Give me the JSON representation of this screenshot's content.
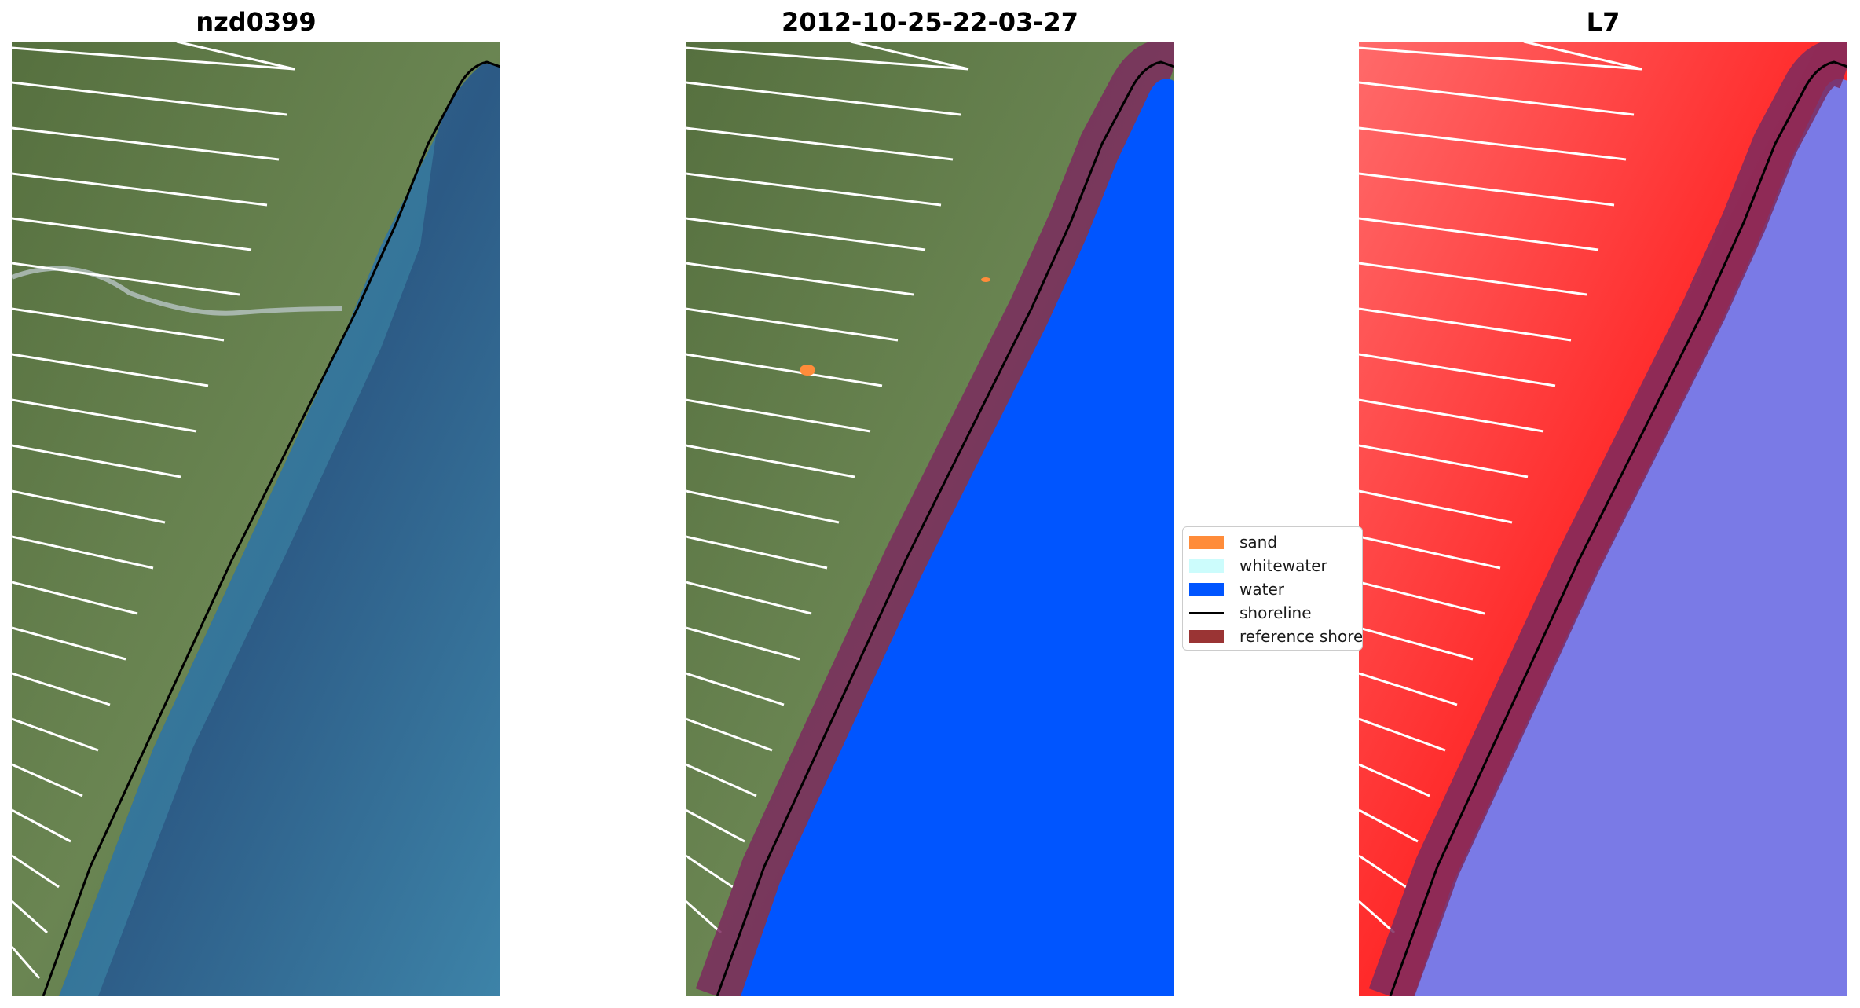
{
  "panels": [
    {
      "title": "nzd0399"
    },
    {
      "title": "2012-10-25-22-03-27"
    },
    {
      "title": "L7"
    }
  ],
  "legend": {
    "items": [
      {
        "label": "sand",
        "color": "#ff8c3a",
        "kind": "patch"
      },
      {
        "label": "whitewater",
        "color": "#ccfcfc",
        "kind": "patch"
      },
      {
        "label": "water",
        "color": "#0055ff",
        "kind": "patch"
      },
      {
        "label": "shoreline",
        "color": "#000000",
        "kind": "line"
      },
      {
        "label": "reference shoreline",
        "color": "#9a3434",
        "kind": "patch"
      }
    ]
  },
  "colors": {
    "land_rgb": "#5f7a4e",
    "sea_rgb": "#2f5f8a",
    "water_class": "#0055ff",
    "reference_buffer": "#7b2a5e",
    "land_swir": "#ff2a2a",
    "sea_swir": "#7a7ae6"
  }
}
